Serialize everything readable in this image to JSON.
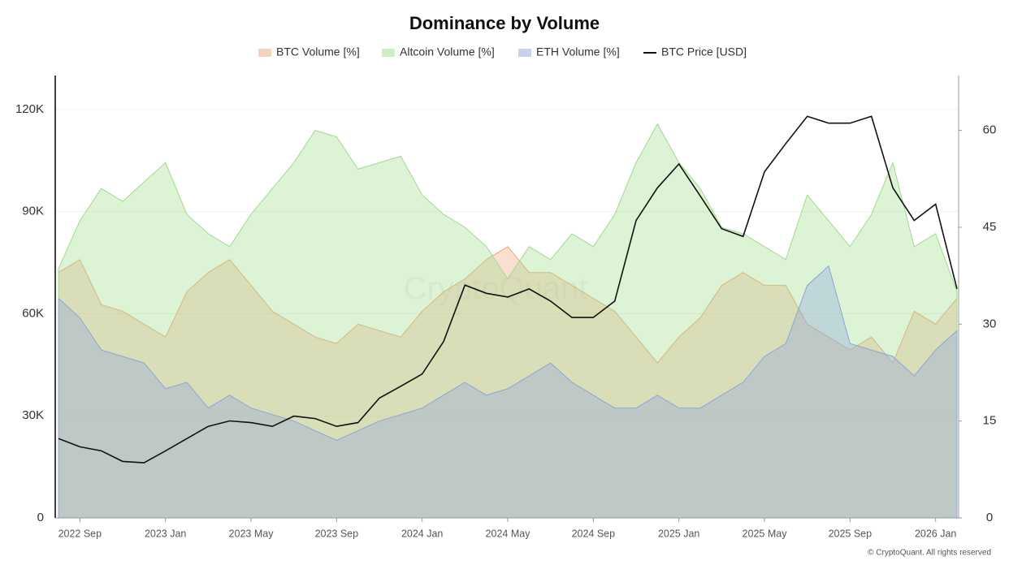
{
  "chart_data": {
    "type": "area",
    "title": "Dominance by Volume",
    "watermark": "CryptoQuant",
    "footer": "© CryptoQuant. All rights reserved",
    "x": [
      "2022 Aug",
      "2022 Sep",
      "2022 Oct",
      "2022 Nov",
      "2022 Dec",
      "2023 Jan",
      "2023 Feb",
      "2023 Mar",
      "2023 Apr",
      "2023 May",
      "2023 Jun",
      "2023 Jul",
      "2023 Aug",
      "2023 Sep",
      "2023 Oct",
      "2023 Nov",
      "2023 Dec",
      "2024 Jan",
      "2024 Feb",
      "2024 Mar",
      "2024 Apr",
      "2024 May",
      "2024 Jun",
      "2024 Jul",
      "2024 Aug",
      "2024 Sep",
      "2024 Oct",
      "2024 Nov",
      "2024 Dec",
      "2025 Jan",
      "2025 Feb",
      "2025 Mar",
      "2025 Apr",
      "2025 May",
      "2025 Jun",
      "2025 Jul",
      "2025 Aug",
      "2025 Sep",
      "2025 Oct",
      "2025 Nov",
      "2025 Dec",
      "2026 Jan",
      "2026 Feb"
    ],
    "xticks": [
      "2022 Sep",
      "2023 Jan",
      "2023 May",
      "2023 Sep",
      "2024 Jan",
      "2024 May",
      "2024 Sep",
      "2025 Jan",
      "2025 May",
      "2025 Sep",
      "2026 Jan"
    ],
    "ylim": [
      0,
      130000
    ],
    "yticks": [
      0,
      {
        "value": 30000,
        "label": "30K"
      },
      {
        "value": 60000,
        "label": "60K"
      },
      {
        "value": 90000,
        "label": "90K"
      },
      {
        "value": 120000,
        "label": "120K"
      }
    ],
    "y2lim": [
      0,
      68.5
    ],
    "y2ticks": [
      0,
      15,
      30,
      45,
      60
    ],
    "grid": true,
    "series": [
      {
        "name": "BTC Volume [%]",
        "color": "#f0a37a",
        "axis": "y2",
        "values": [
          38,
          40,
          33,
          32,
          30,
          28,
          35,
          38,
          40,
          36,
          32,
          30,
          28,
          27,
          30,
          29,
          28,
          32,
          35,
          37,
          40,
          42,
          38,
          38,
          36,
          34,
          32,
          28,
          24,
          28,
          31,
          36,
          38,
          36,
          36,
          30,
          28,
          26,
          28,
          24,
          32,
          30,
          34
        ]
      },
      {
        "name": "Altcoin Volume [%]",
        "color": "#9fdc8a",
        "axis": "y2",
        "values": [
          38.6,
          46,
          51,
          49,
          52,
          55,
          47,
          44,
          42,
          47,
          51,
          55,
          60,
          59,
          54,
          55,
          56,
          50,
          47,
          45,
          42,
          37,
          42,
          40,
          44,
          42,
          47,
          55,
          61,
          55,
          51,
          45,
          44,
          42,
          40,
          50,
          46,
          42,
          47,
          55,
          42,
          44,
          35
        ]
      },
      {
        "name": "ETH Volume [%]",
        "color": "#8aa3e0",
        "axis": "y2",
        "values": [
          34,
          31,
          26,
          25,
          24,
          20,
          21,
          17,
          19,
          17,
          16,
          15,
          13.5,
          12,
          13.5,
          15,
          16,
          17,
          19,
          21,
          19,
          20,
          22,
          24,
          21,
          19,
          17,
          17,
          19,
          17,
          17,
          19,
          21,
          25,
          27,
          36,
          39,
          27,
          26,
          25,
          22,
          26,
          29
        ]
      },
      {
        "name": "BTC Price [USD]",
        "color": "#111111",
        "axis": "y",
        "style": "line",
        "values": [
          23300,
          20900,
          19700,
          16600,
          16200,
          19700,
          23300,
          26900,
          28500,
          28000,
          26900,
          29900,
          29200,
          26900,
          28000,
          35200,
          38700,
          42300,
          51800,
          68400,
          66000,
          64900,
          67300,
          63700,
          58900,
          58900,
          63700,
          87400,
          97000,
          104000,
          94600,
          85000,
          82700,
          101700,
          110000,
          118000,
          116000,
          116000,
          118000,
          97000,
          87400,
          92200,
          67300
        ]
      }
    ]
  }
}
